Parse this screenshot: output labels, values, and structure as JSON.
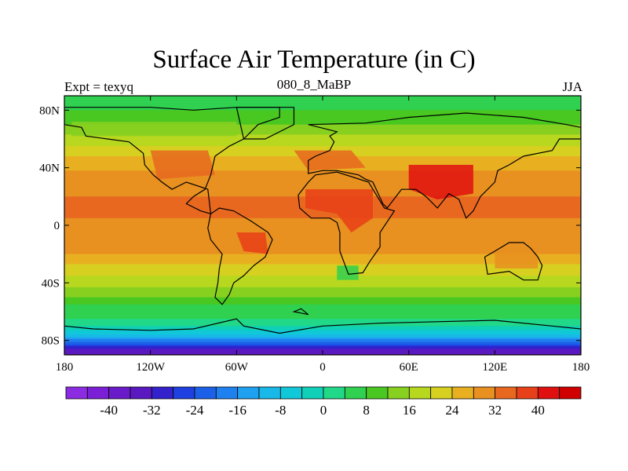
{
  "title": "Surface Air Temperature (in C)",
  "left_label": "Expt = texyq",
  "center_label": "080_8_MaBP",
  "right_label": "JJA",
  "map": {
    "lon_range": [
      -180,
      180
    ],
    "lat_range": [
      -90,
      90
    ],
    "x_ticks": [
      {
        "value": -180,
        "label": "180"
      },
      {
        "value": -120,
        "label": "120W"
      },
      {
        "value": -60,
        "label": "60W"
      },
      {
        "value": 0,
        "label": "0"
      },
      {
        "value": 60,
        "label": "60E"
      },
      {
        "value": 120,
        "label": "120E"
      },
      {
        "value": 180,
        "label": "180"
      }
    ],
    "y_ticks": [
      {
        "value": 80,
        "label": "80N"
      },
      {
        "value": 40,
        "label": "40N"
      },
      {
        "value": 0,
        "label": "0"
      },
      {
        "value": -40,
        "label": "40S"
      },
      {
        "value": -80,
        "label": "80S"
      }
    ],
    "zonal_temperature_profile": [
      [
        -90,
        -38
      ],
      [
        -85,
        -30
      ],
      [
        -80,
        -18
      ],
      [
        -75,
        -6
      ],
      [
        -70,
        0
      ],
      [
        -65,
        4
      ],
      [
        -60,
        6
      ],
      [
        -55,
        8
      ],
      [
        -50,
        12
      ],
      [
        -45,
        15
      ],
      [
        -40,
        17
      ],
      [
        -35,
        20
      ],
      [
        -30,
        22
      ],
      [
        -25,
        25
      ],
      [
        -20,
        28
      ],
      [
        -15,
        30
      ],
      [
        -10,
        30
      ],
      [
        -5,
        30
      ],
      [
        0,
        31
      ],
      [
        5,
        32
      ],
      [
        10,
        33
      ],
      [
        15,
        33
      ],
      [
        20,
        32
      ],
      [
        25,
        31
      ],
      [
        30,
        30
      ],
      [
        35,
        29
      ],
      [
        40,
        27
      ],
      [
        45,
        25
      ],
      [
        50,
        23
      ],
      [
        55,
        20
      ],
      [
        60,
        18
      ],
      [
        65,
        15
      ],
      [
        70,
        12
      ],
      [
        75,
        9
      ],
      [
        80,
        8
      ],
      [
        85,
        7
      ],
      [
        90,
        6
      ]
    ]
  },
  "colorbar": {
    "levels": [
      -44,
      -40,
      -36,
      -32,
      -28,
      -24,
      -20,
      -16,
      -12,
      -8,
      -4,
      0,
      4,
      8,
      12,
      16,
      20,
      24,
      28,
      32,
      36,
      40,
      44
    ],
    "colors": [
      "#8b2be2",
      "#7b1fd6",
      "#6a1bc9",
      "#5a18c0",
      "#3322cc",
      "#1e40e0",
      "#1c60e8",
      "#1f80f0",
      "#1fa0f0",
      "#18b8e8",
      "#10c8d8",
      "#10d0b8",
      "#20d888",
      "#30d050",
      "#48c820",
      "#88d020",
      "#b8d820",
      "#d8d020",
      "#e8b020",
      "#e89020",
      "#e86820",
      "#e84018",
      "#e01010",
      "#d00000"
    ],
    "tick_labels": [
      {
        "value": -40,
        "label": "-40"
      },
      {
        "value": -32,
        "label": "-32"
      },
      {
        "value": -24,
        "label": "-24"
      },
      {
        "value": -16,
        "label": "-16"
      },
      {
        "value": -8,
        "label": "-8"
      },
      {
        "value": 0,
        "label": "0"
      },
      {
        "value": 8,
        "label": "8"
      },
      {
        "value": 16,
        "label": "16"
      },
      {
        "value": 24,
        "label": "24"
      },
      {
        "value": 32,
        "label": "32"
      },
      {
        "value": 40,
        "label": "40"
      }
    ]
  }
}
